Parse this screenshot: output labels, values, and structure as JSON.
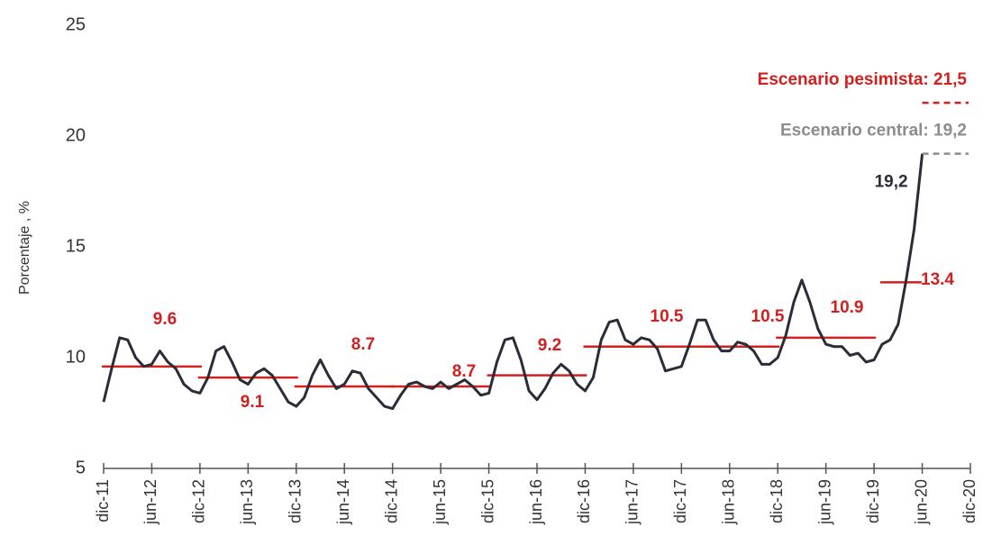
{
  "chart_data": {
    "type": "line",
    "y_label": "Porcentaje , %",
    "ylim": [
      5,
      25
    ],
    "yticks": [
      5,
      10,
      15,
      20,
      25
    ],
    "categories": [
      "dic-11",
      null,
      null,
      null,
      null,
      null,
      "jun-12",
      null,
      null,
      null,
      null,
      null,
      "dic-12",
      null,
      null,
      null,
      null,
      null,
      "jun-13",
      null,
      null,
      null,
      null,
      null,
      "dic-13",
      null,
      null,
      null,
      null,
      null,
      "jun-14",
      null,
      null,
      null,
      null,
      null,
      "dic-14",
      null,
      null,
      null,
      null,
      null,
      "jun-15",
      null,
      null,
      null,
      null,
      null,
      "dic-15",
      null,
      null,
      null,
      null,
      null,
      "jun-16",
      null,
      null,
      null,
      null,
      null,
      "dic-16",
      null,
      null,
      null,
      null,
      null,
      "jun-17",
      null,
      null,
      null,
      null,
      null,
      "dic-17",
      null,
      null,
      null,
      null,
      null,
      "jun-18",
      null,
      null,
      null,
      null,
      null,
      "dic-18",
      null,
      null,
      null,
      null,
      null,
      "jun-19",
      null,
      null,
      null,
      null,
      null,
      "dic-19",
      null,
      null,
      null,
      null,
      null,
      "jun-20",
      null,
      null,
      null,
      null,
      null,
      "dic-20"
    ],
    "series": [
      {
        "color": "#2b2c38",
        "values": [
          8.0,
          9.5,
          10.9,
          10.8,
          10.0,
          9.6,
          9.7,
          10.3,
          9.8,
          9.5,
          8.8,
          8.5,
          8.4,
          9.1,
          10.3,
          10.5,
          9.8,
          9.0,
          8.8,
          9.3,
          9.5,
          9.2,
          8.6,
          8.0,
          7.8,
          8.2,
          9.2,
          9.9,
          9.2,
          8.6,
          8.8,
          9.4,
          9.3,
          8.6,
          8.2,
          7.8,
          7.7,
          8.3,
          8.8,
          8.9,
          8.7,
          8.6,
          8.9,
          8.6,
          8.8,
          9.0,
          8.7,
          8.3,
          8.4,
          9.8,
          10.8,
          10.9,
          9.9,
          8.5,
          8.1,
          8.6,
          9.3,
          9.7,
          9.4,
          8.8,
          8.5,
          9.1,
          10.8,
          11.6,
          11.7,
          10.8,
          10.6,
          10.9,
          10.8,
          10.4,
          9.4,
          9.5,
          9.6,
          10.6,
          11.7,
          11.7,
          10.8,
          10.3,
          10.3,
          10.7,
          10.6,
          10.3,
          9.7,
          9.7,
          10.0,
          11.0,
          12.5,
          13.5,
          12.5,
          11.3,
          10.6,
          10.5,
          10.5,
          10.1,
          10.2,
          9.8,
          9.9,
          10.6,
          10.8,
          11.5,
          13.5,
          15.8,
          19.2,
          null,
          null,
          null,
          null,
          null,
          null
        ],
        "end_label": "19,2"
      }
    ],
    "averages": {
      "color": "#d02020",
      "values": [
        9.6,
        9.1,
        8.7,
        8.7,
        9.2,
        10.5,
        10.5,
        10.9,
        13.4
      ]
    },
    "scenarios": [
      {
        "label": "Escenario pesimista: 21,5",
        "value": 21.5,
        "color": "#d02020"
      },
      {
        "label": "Escenario central: 19,2",
        "value": 19.2,
        "color": "#8c8c8c"
      }
    ]
  }
}
